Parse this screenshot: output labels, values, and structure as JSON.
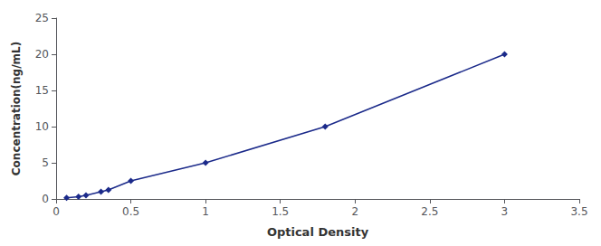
{
  "chart_data": {
    "type": "line",
    "xlabel": "Optical Density",
    "ylabel": "Concentration(ng/mL)",
    "x": [
      0.07,
      0.15,
      0.2,
      0.3,
      0.35,
      0.5,
      1.0,
      1.8,
      3.0
    ],
    "values": [
      0.16,
      0.31,
      0.5,
      1.0,
      1.25,
      2.5,
      5.0,
      10.0,
      20.0
    ],
    "color": "#1B2A8A",
    "marker": "diamond",
    "xlim": [
      0,
      3.5
    ],
    "xticks": [
      0,
      0.5,
      1,
      1.5,
      2,
      2.5,
      3,
      3.5
    ],
    "ylim": [
      0,
      25
    ],
    "yticks": [
      0,
      5,
      10,
      15,
      20,
      25
    ],
    "grid": false
  }
}
